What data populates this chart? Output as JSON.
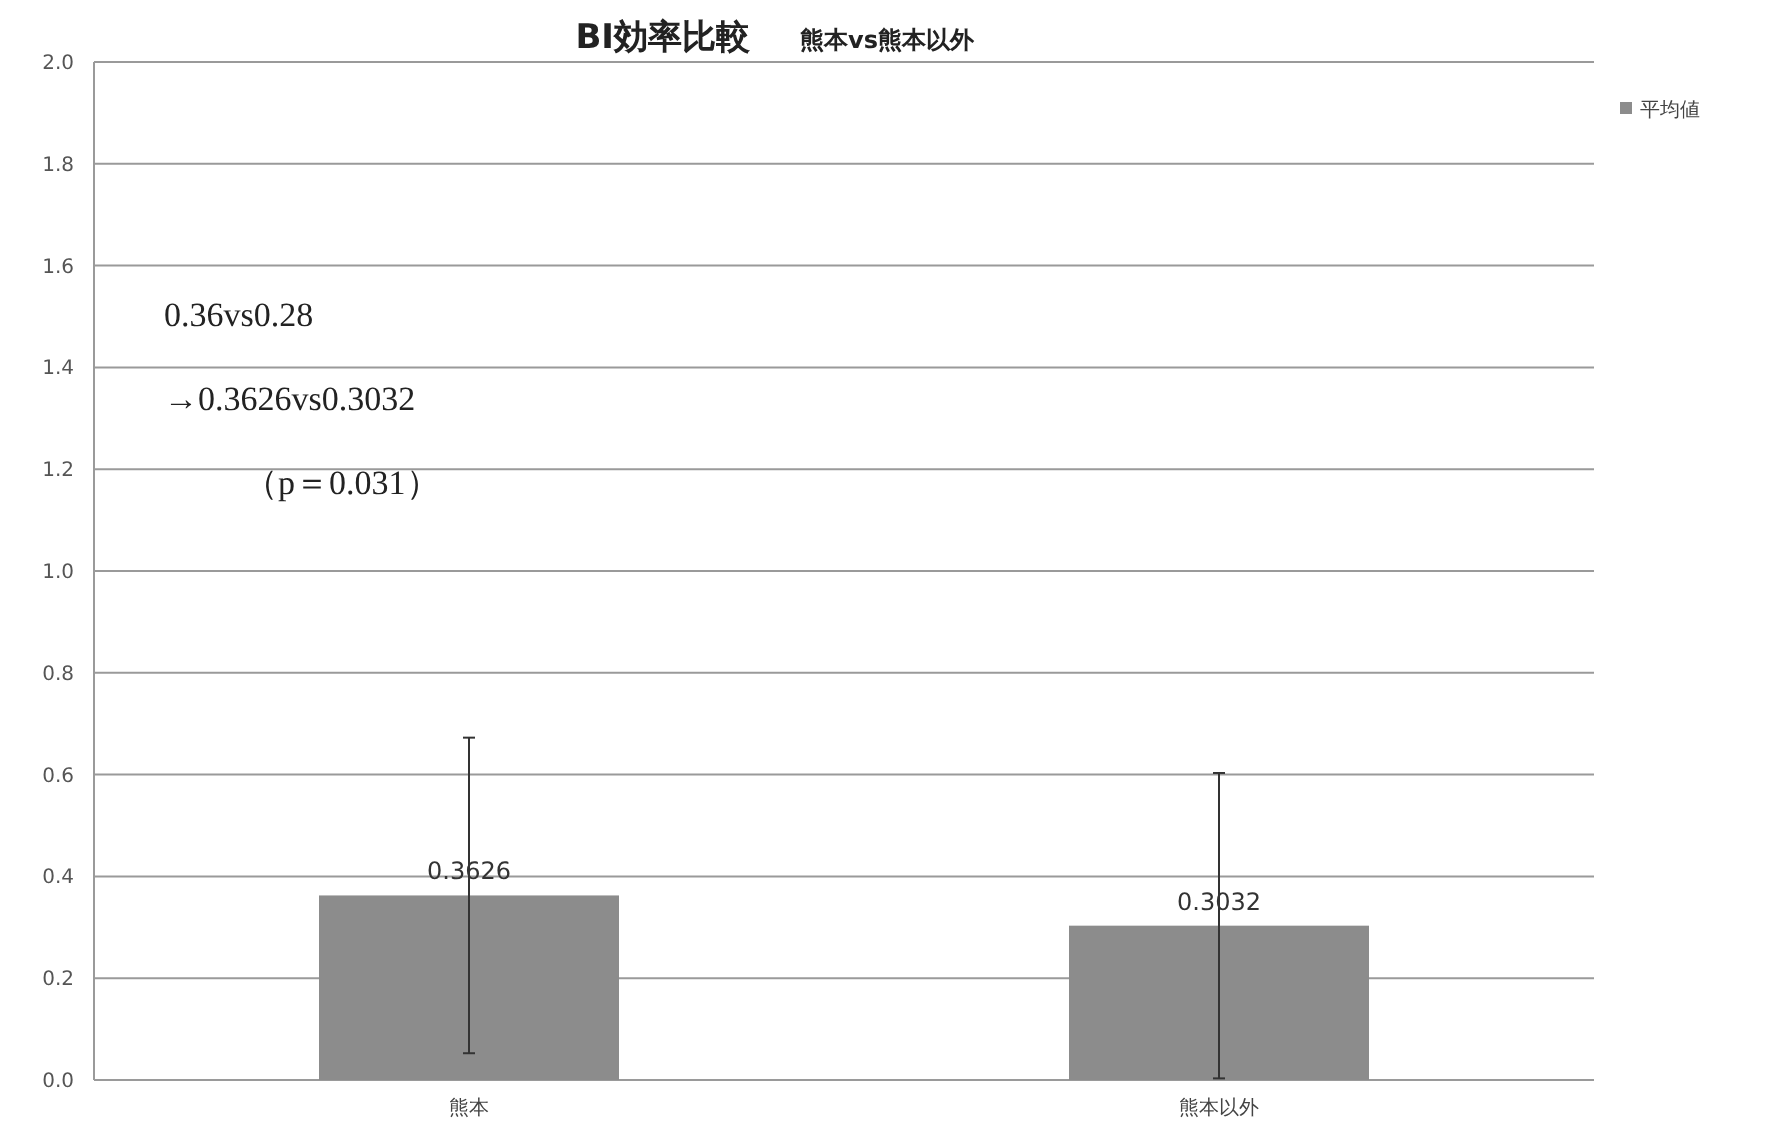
{
  "chart_data": {
    "type": "bar",
    "title": "BI効率比較",
    "subtitle": "熊本vs熊本以外",
    "categories": [
      "熊本",
      "熊本以外"
    ],
    "series": [
      {
        "name": "平均値",
        "color": "#8c8c8c",
        "values": [
          0.3626,
          0.3032
        ],
        "errors": [
          0.31,
          0.3
        ]
      }
    ],
    "data_labels": true,
    "ylim": [
      0,
      2.0
    ],
    "yticks": [
      {
        "value": 0,
        "label": "0.0"
      },
      {
        "value": 0.2,
        "label": "0.2"
      },
      {
        "value": 0.4,
        "label": "0.4"
      },
      {
        "value": 0.6,
        "label": "0.6"
      },
      {
        "value": 0.8,
        "label": "0.8"
      },
      {
        "value": 1.0,
        "label": "1.0"
      },
      {
        "value": 1.2,
        "label": "1.2"
      },
      {
        "value": 1.4,
        "label": "1.4"
      },
      {
        "value": 1.6,
        "label": "1.6"
      },
      {
        "value": 1.8,
        "label": "1.8"
      },
      {
        "value": 2.0,
        "label": "2.0"
      }
    ],
    "grid": "y",
    "legend": "top right",
    "annotations": [
      "0.36vs0.28",
      "→0.3626vs0.3032",
      "（p＝0.031）"
    ]
  }
}
